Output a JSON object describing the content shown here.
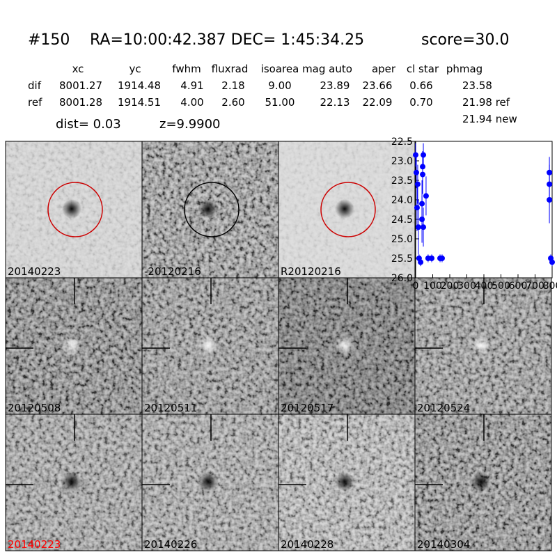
{
  "header": {
    "id": "#150",
    "coords": "RA=10:00:42.387 DEC= 1:45:34.25",
    "score": "score=30.0"
  },
  "table": {
    "columns": [
      "xc",
      "yc",
      "fwhm",
      "fluxrad",
      "isoarea",
      "mag auto",
      "aper",
      "cl star",
      "phmag"
    ],
    "rows": [
      [
        "dif",
        "8001.27",
        "1914.48",
        "4.91",
        "2.18",
        "9.00",
        "23.89",
        "23.66",
        "0.66",
        "23.58"
      ],
      [
        "ref",
        "8001.28",
        "1914.51",
        "4.00",
        "2.60",
        "51.00",
        "22.13",
        "22.09",
        "0.70",
        "21.98 ref"
      ]
    ],
    "extra": "21.94 new"
  },
  "dist": "dist=  0.03",
  "z": "z=9.9900",
  "tiles": [
    "20140223",
    "-20120216",
    "R20120216",
    "20120508",
    "20120511",
    "20120517",
    "20120524",
    "20140223",
    "20140226",
    "20140228",
    "20140304"
  ],
  "chart_data": {
    "type": "scatter",
    "color": "#0000ff",
    "x": [
      0,
      4,
      12,
      8,
      16,
      20,
      29,
      37,
      41,
      45,
      41,
      37,
      45,
      61,
      73,
      94,
      143,
      155,
      784,
      784,
      784,
      792,
      800
    ],
    "values": [
      22.85,
      23.3,
      23.6,
      24.2,
      24.7,
      25.5,
      25.6,
      24.1,
      23.15,
      22.85,
      23.35,
      24.5,
      24.7,
      23.9,
      25.5,
      25.5,
      25.5,
      25.5,
      23.3,
      23.6,
      24.0,
      25.5,
      25.6
    ],
    "errors": [
      0.3,
      0.4,
      0.5,
      0.6,
      0.7,
      0.1,
      0.1,
      0.6,
      0.4,
      0.3,
      0.5,
      0.6,
      0.5,
      0.5,
      0.1,
      0.1,
      0.1,
      0.1,
      0.4,
      0.5,
      0.6,
      0.1,
      0.1
    ],
    "xlim": [
      0,
      800
    ],
    "ylim": [
      26,
      22.5
    ],
    "xticks": [
      0,
      100,
      200,
      300,
      400,
      500,
      600,
      700,
      800
    ],
    "yticks": [
      22.5,
      {
        "value": 23,
        "label": "23.0"
      },
      23.5,
      {
        "value": 24,
        "label": "24.0"
      },
      24.5,
      {
        "value": 25,
        "label": "25.0"
      },
      25.5,
      {
        "value": 26,
        "label": "26.0"
      }
    ]
  }
}
